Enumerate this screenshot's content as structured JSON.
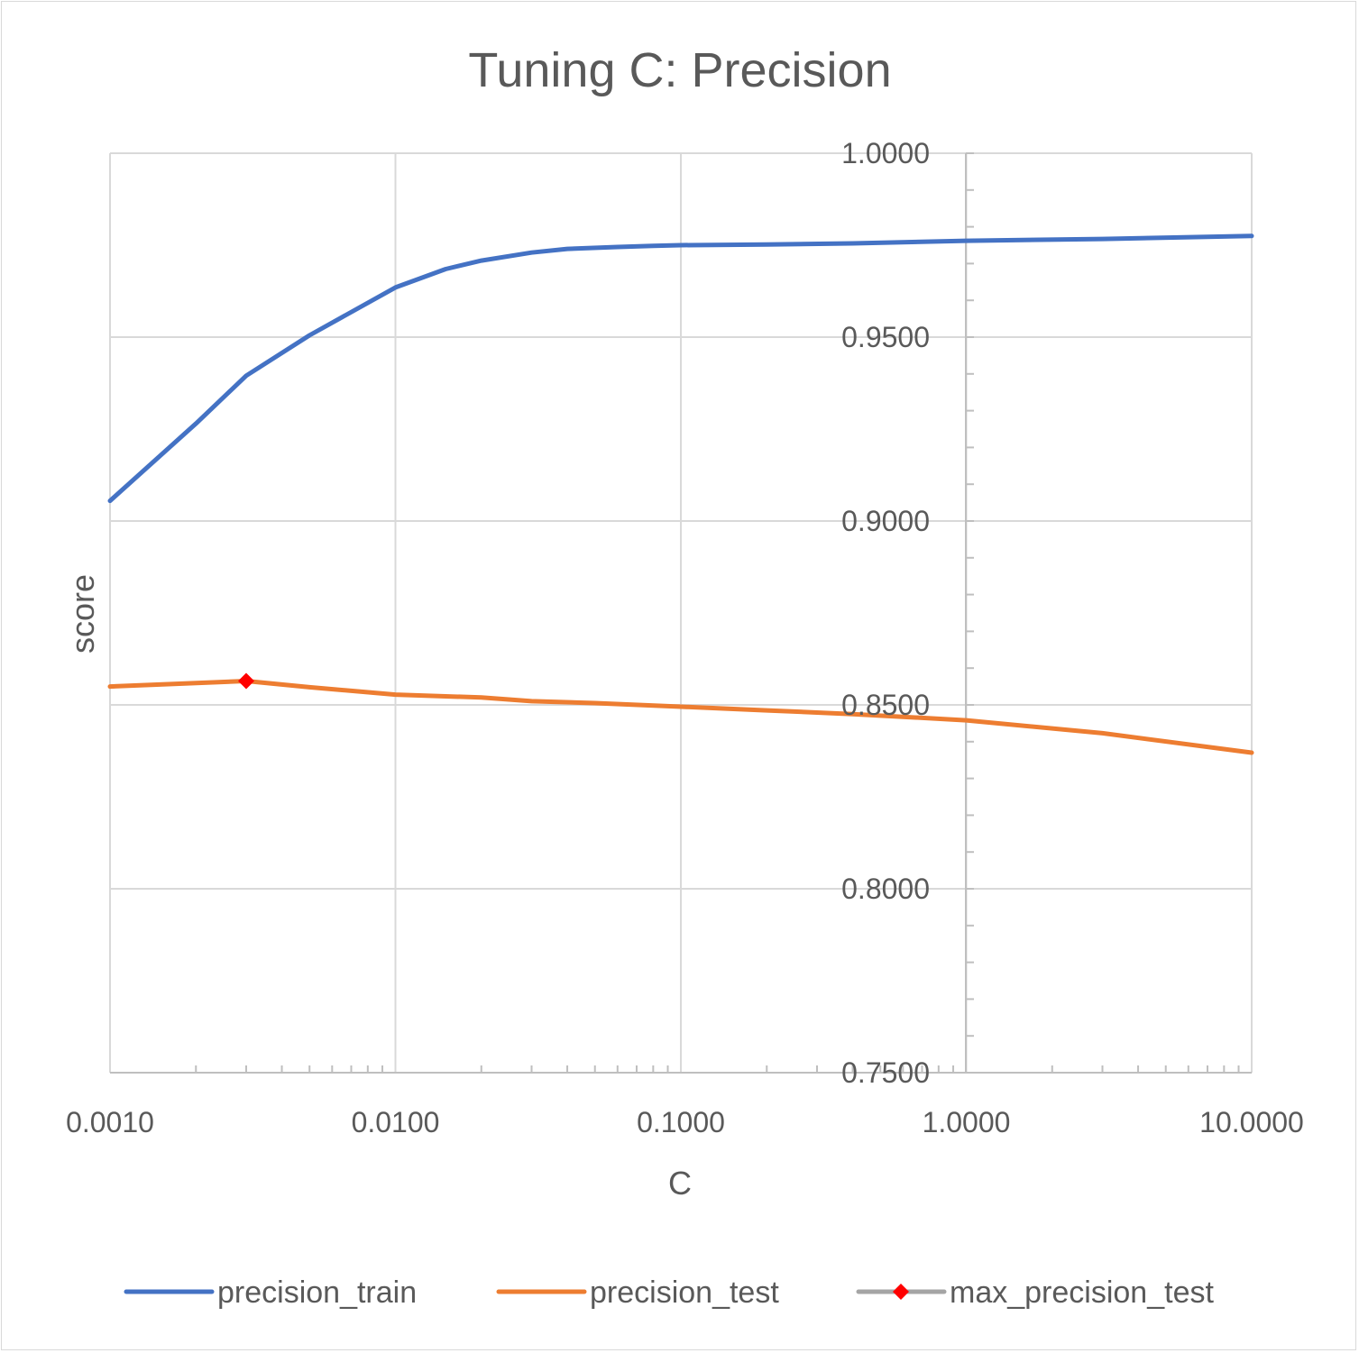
{
  "chart_data": {
    "type": "line",
    "title": "Tuning C: Precision",
    "xlabel": "C",
    "ylabel": "score",
    "x_scale": "log",
    "xlim": [
      0.001,
      10
    ],
    "ylim": [
      0.75,
      1.0
    ],
    "x_ticks": [
      "0.0010",
      "0.0100",
      "0.1000",
      "1.0000",
      "10.0000"
    ],
    "x_tick_values": [
      0.001,
      0.01,
      0.1,
      1,
      10
    ],
    "y_ticks": [
      "0.7500",
      "0.8000",
      "0.8500",
      "0.9000",
      "0.9500",
      "1.0000"
    ],
    "y_tick_values": [
      0.75,
      0.8,
      0.85,
      0.9,
      0.95,
      1.0
    ],
    "grid": true,
    "legend_position": "bottom",
    "series": [
      {
        "name": "precision_train",
        "color": "#4472c4",
        "marker": "none",
        "x": [
          0.001,
          0.002,
          0.003,
          0.005,
          0.01,
          0.015,
          0.02,
          0.03,
          0.04,
          0.06,
          0.08,
          0.1,
          0.2,
          0.4,
          1,
          3,
          10
        ],
        "y": [
          0.9055,
          0.9265,
          0.9395,
          0.9505,
          0.9635,
          0.9685,
          0.9708,
          0.973,
          0.974,
          0.9745,
          0.9748,
          0.975,
          0.9752,
          0.9755,
          0.9762,
          0.9767,
          0.9775
        ]
      },
      {
        "name": "precision_test",
        "color": "#ed7d31",
        "marker": "none",
        "x": [
          0.001,
          0.003,
          0.005,
          0.01,
          0.02,
          0.03,
          0.05,
          0.1,
          0.2,
          0.4,
          1,
          3,
          10
        ],
        "y": [
          0.855,
          0.8565,
          0.8548,
          0.8528,
          0.852,
          0.851,
          0.8505,
          0.8495,
          0.8485,
          0.8475,
          0.8458,
          0.8423,
          0.837
        ]
      },
      {
        "name": "max_precision_test",
        "color": "#a5a5a5",
        "marker": "diamond",
        "marker_color": "#ff0000",
        "x": [
          0.003
        ],
        "y": [
          0.8565
        ]
      }
    ]
  }
}
